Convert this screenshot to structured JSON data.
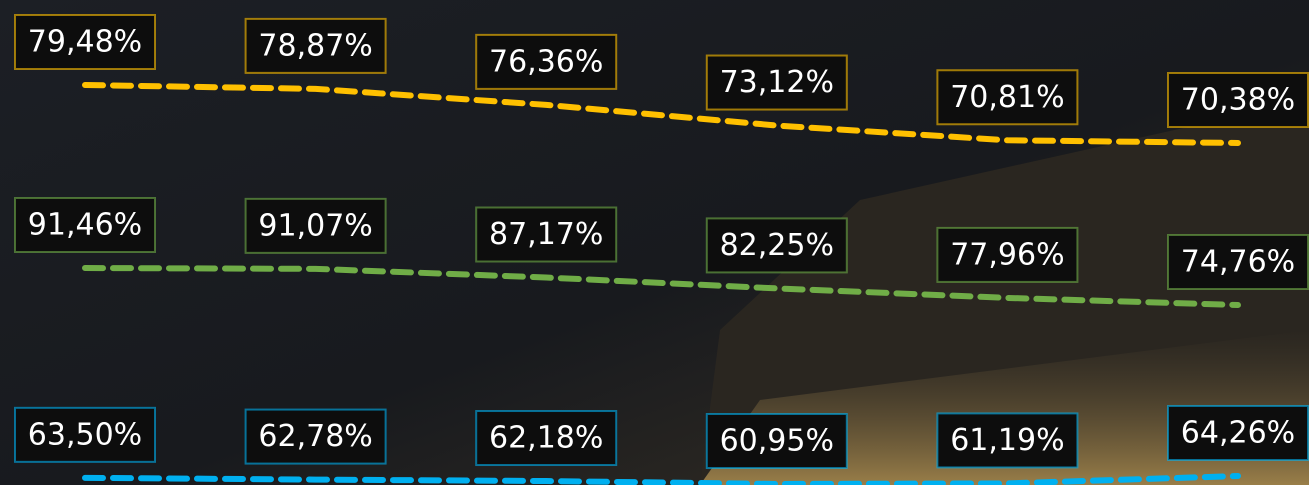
{
  "chart_data": {
    "type": "line",
    "categories": [
      null,
      null,
      null,
      null,
      null,
      null
    ],
    "series": [
      {
        "color": "#ffc000",
        "values": [
          79.48,
          78.87,
          76.36,
          73.12,
          70.81,
          70.38
        ],
        "value_labels": [
          "79,48%",
          "78,87%",
          "76,36%",
          "73,12%",
          "70,81%",
          "70,38%"
        ]
      },
      {
        "color": "#70ad47",
        "values": [
          91.46,
          91.07,
          87.17,
          82.25,
          77.96,
          74.76
        ],
        "value_labels": [
          "91,46%",
          "91,07%",
          "87,17%",
          "82,25%",
          "77,96%",
          "74,76%"
        ]
      },
      {
        "color": "#00b0f0",
        "values": [
          63.5,
          62.78,
          62.18,
          60.95,
          61.19,
          64.26
        ],
        "value_labels": [
          "63,50%",
          "62,78%",
          "62,18%",
          "60,95%",
          "61,19%",
          "64,26%"
        ]
      }
    ]
  }
}
